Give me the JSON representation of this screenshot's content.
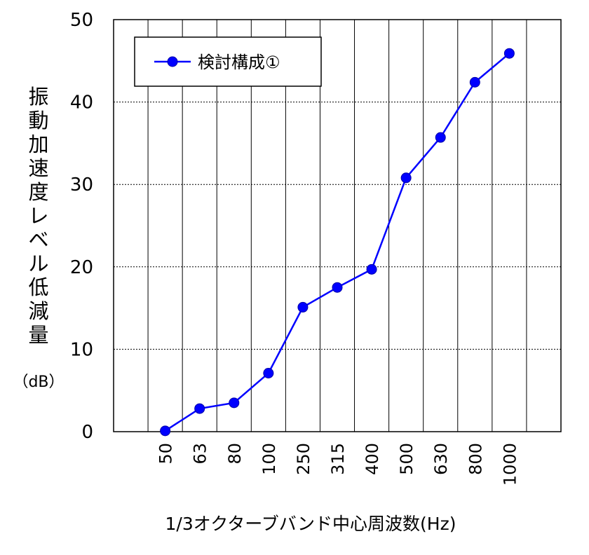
{
  "chart_data": {
    "type": "line",
    "categories": [
      "50",
      "63",
      "80",
      "100",
      "250",
      "315",
      "400",
      "500",
      "630",
      "800",
      "1000"
    ],
    "series": [
      {
        "name": "検討構成①",
        "values": [
          0.1,
          2.8,
          3.5,
          7.1,
          15.1,
          17.5,
          19.7,
          30.8,
          35.7,
          42.4,
          45.9
        ],
        "color": "#0000ff"
      }
    ],
    "ylim": [
      0,
      50
    ],
    "yticks": [
      "0",
      "10",
      "20",
      "30",
      "40",
      "50"
    ],
    "ylabel": "振動加速度レベル低減量",
    "yunit": "（dB）",
    "xlabel": "1/3オクターブバンド中心周波数(Hz)",
    "legend_position": "top-left",
    "grid": {
      "horizontal": "dotted",
      "vertical": "solid"
    }
  }
}
